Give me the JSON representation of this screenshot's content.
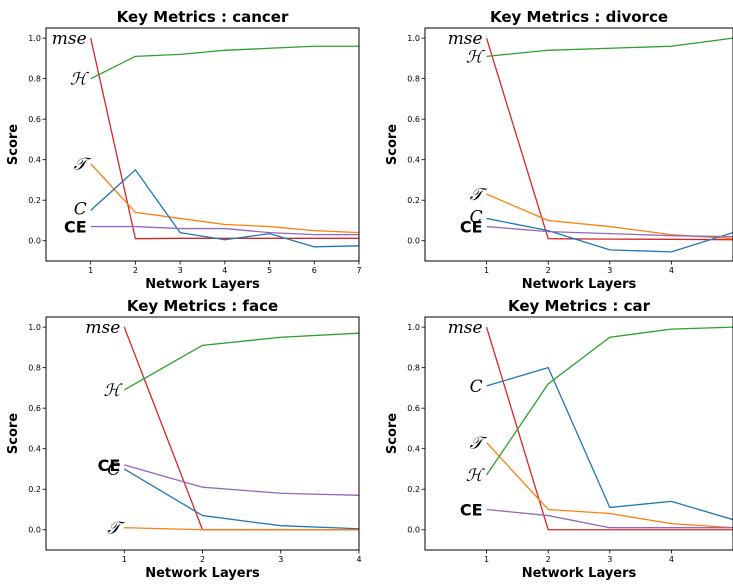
{
  "chart_data": [
    {
      "type": "line",
      "title": "Key Metrics : cancer",
      "xlabel": "Network Layers",
      "ylabel": "Score",
      "xlim": [
        0.0,
        7.0
      ],
      "ylim": [
        -0.1,
        1.05
      ],
      "xticks": [
        1,
        2,
        3,
        4,
        5,
        6,
        7
      ],
      "yticks": [
        0.0,
        0.2,
        0.4,
        0.6,
        0.8,
        1.0
      ],
      "ytick_labels": [
        "0.0",
        "0.2",
        "0.4",
        "0.6",
        "0.8",
        "1.0"
      ],
      "series": [
        {
          "name": "mse",
          "color": "#d62728",
          "x": [
            1,
            2,
            3,
            4,
            5,
            6,
            7
          ],
          "y": [
            1.0,
            0.01,
            0.012,
            0.012,
            0.012,
            0.012,
            0.012
          ],
          "label_y": 1.0
        },
        {
          "name": "ℋ",
          "color": "#2ca02c",
          "x": [
            1,
            2,
            3,
            4,
            5,
            6,
            7
          ],
          "y": [
            0.8,
            0.91,
            0.92,
            0.94,
            0.95,
            0.96,
            0.96
          ],
          "label_y": 0.8
        },
        {
          "name": "𝒯",
          "color": "#ff7f0e",
          "x": [
            1,
            2,
            3,
            4,
            5,
            6,
            7
          ],
          "y": [
            0.38,
            0.14,
            0.11,
            0.08,
            0.07,
            0.05,
            0.04
          ],
          "label_y": 0.38
        },
        {
          "name": "C",
          "color": "#1f77b4",
          "x": [
            1,
            2,
            3,
            4,
            5,
            6,
            7
          ],
          "y": [
            0.15,
            0.35,
            0.04,
            0.005,
            0.035,
            -0.03,
            -0.025
          ],
          "label_y": 0.16
        },
        {
          "name": "CE",
          "color": "#9467bd",
          "bold": true,
          "x": [
            1,
            2,
            3,
            4,
            5,
            6,
            7
          ],
          "y": [
            0.07,
            0.07,
            0.06,
            0.06,
            0.04,
            0.03,
            0.03
          ],
          "label_y": 0.07
        }
      ]
    },
    {
      "type": "line",
      "title": "Key Metrics : divorce",
      "xlabel": "Network Layers",
      "ylabel": "Score",
      "xlim": [
        0.0,
        5.0
      ],
      "ylim": [
        -0.1,
        1.05
      ],
      "xticks": [
        1,
        2,
        3,
        4
      ],
      "yticks": [
        0.0,
        0.2,
        0.4,
        0.6,
        0.8,
        1.0
      ],
      "ytick_labels": [
        "0.0",
        "0.2",
        "0.4",
        "0.6",
        "0.8",
        "1.0"
      ],
      "series": [
        {
          "name": "mse",
          "color": "#d62728",
          "x": [
            1,
            2,
            3,
            4,
            5
          ],
          "y": [
            1.0,
            0.01,
            0.008,
            0.007,
            0.005
          ],
          "label_y": 1.0
        },
        {
          "name": "ℋ",
          "color": "#2ca02c",
          "x": [
            1,
            2,
            3,
            4,
            5
          ],
          "y": [
            0.91,
            0.94,
            0.95,
            0.96,
            1.0
          ],
          "label_y": 0.91
        },
        {
          "name": "𝒯",
          "color": "#ff7f0e",
          "x": [
            1,
            2,
            3,
            4,
            5
          ],
          "y": [
            0.23,
            0.1,
            0.07,
            0.03,
            0.01
          ],
          "label_y": 0.23
        },
        {
          "name": "C",
          "color": "#1f77b4",
          "x": [
            1,
            2,
            3,
            4,
            5
          ],
          "y": [
            0.11,
            0.05,
            -0.045,
            -0.055,
            0.04
          ],
          "label_y": 0.12
        },
        {
          "name": "CE",
          "color": "#9467bd",
          "bold": true,
          "x": [
            1,
            2,
            3,
            4,
            5
          ],
          "y": [
            0.07,
            0.045,
            0.035,
            0.025,
            0.02
          ],
          "label_y": 0.07
        }
      ]
    },
    {
      "type": "line",
      "title": "Key Metrics : face",
      "xlabel": "Network Layers",
      "ylabel": "Score",
      "xlim": [
        0.0,
        4.0
      ],
      "ylim": [
        -0.1,
        1.05
      ],
      "xticks": [
        1,
        2,
        3,
        4
      ],
      "yticks": [
        0.0,
        0.2,
        0.4,
        0.6,
        0.8,
        1.0
      ],
      "ytick_labels": [
        "0.0",
        "0.2",
        "0.4",
        "0.6",
        "0.8",
        "1.0"
      ],
      "series": [
        {
          "name": "mse",
          "color": "#d62728",
          "x": [
            1,
            2,
            3,
            4
          ],
          "y": [
            1.0,
            0.0,
            0.0,
            0.0
          ],
          "label_y": 1.0
        },
        {
          "name": "ℋ",
          "color": "#2ca02c",
          "x": [
            1,
            2,
            3,
            4
          ],
          "y": [
            0.69,
            0.91,
            0.95,
            0.97
          ],
          "label_y": 0.69
        },
        {
          "name": "C",
          "color": "#1f77b4",
          "x": [
            1,
            2,
            3,
            4
          ],
          "y": [
            0.3,
            0.07,
            0.02,
            0.005
          ],
          "label_y": 0.3
        },
        {
          "name": "CE",
          "color": "#9467bd",
          "bold": true,
          "x": [
            1,
            2,
            3,
            4
          ],
          "y": [
            0.32,
            0.21,
            0.18,
            0.17
          ],
          "label_y": 0.32
        },
        {
          "name": "𝒯",
          "color": "#ff7f0e",
          "x": [
            1,
            2,
            3,
            4
          ],
          "y": [
            0.01,
            0.0,
            0.0,
            0.0
          ],
          "label_y": 0.01
        }
      ]
    },
    {
      "type": "line",
      "title": "Key Metrics : car",
      "xlabel": "Network Layers",
      "ylabel": "Score",
      "xlim": [
        0.0,
        5.0
      ],
      "ylim": [
        -0.1,
        1.05
      ],
      "xticks": [
        1,
        2,
        3,
        4
      ],
      "yticks": [
        0.0,
        0.2,
        0.4,
        0.6,
        0.8,
        1.0
      ],
      "ytick_labels": [
        "0.0",
        "0.2",
        "0.4",
        "0.6",
        "0.8",
        "1.0"
      ],
      "series": [
        {
          "name": "mse",
          "color": "#d62728",
          "x": [
            1,
            2,
            3,
            4,
            5
          ],
          "y": [
            1.0,
            0.0,
            0.0,
            0.0,
            0.0
          ],
          "label_y": 1.0
        },
        {
          "name": "C",
          "color": "#1f77b4",
          "x": [
            1,
            2,
            3,
            4,
            5
          ],
          "y": [
            0.71,
            0.8,
            0.11,
            0.14,
            0.05
          ],
          "label_y": 0.71
        },
        {
          "name": "𝒯",
          "color": "#ff7f0e",
          "x": [
            1,
            2,
            3,
            4,
            5
          ],
          "y": [
            0.43,
            0.1,
            0.08,
            0.03,
            0.01
          ],
          "label_y": 0.43
        },
        {
          "name": "ℋ",
          "color": "#2ca02c",
          "x": [
            1,
            2,
            3,
            4,
            5
          ],
          "y": [
            0.27,
            0.72,
            0.95,
            0.99,
            1.0
          ],
          "label_y": 0.27
        },
        {
          "name": "CE",
          "color": "#9467bd",
          "bold": true,
          "x": [
            1,
            2,
            3,
            4,
            5
          ],
          "y": [
            0.1,
            0.07,
            0.01,
            0.01,
            0.01
          ],
          "label_y": 0.1
        }
      ]
    }
  ]
}
